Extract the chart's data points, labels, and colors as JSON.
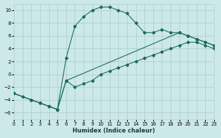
{
  "xlabel": "Humidex (Indice chaleur)",
  "xlim": [
    0,
    23
  ],
  "ylim": [
    -7,
    11
  ],
  "xticks": [
    0,
    1,
    2,
    3,
    4,
    5,
    6,
    7,
    8,
    9,
    10,
    11,
    12,
    13,
    14,
    15,
    16,
    17,
    18,
    19,
    20,
    21,
    22,
    23
  ],
  "yticks": [
    -6,
    -4,
    -2,
    0,
    2,
    4,
    6,
    8,
    10
  ],
  "bg_color": "#cce8e8",
  "grid_color": "#b0d0d0",
  "line_color": "#1a6b5a",
  "curve1_x": [
    0,
    1,
    2,
    3,
    4,
    5,
    6,
    7,
    8,
    9,
    10,
    11,
    12,
    13,
    14,
    15,
    16,
    17,
    18,
    19,
    20,
    21,
    22,
    23
  ],
  "curve1_y": [
    -3.0,
    -3.5,
    -4.0,
    -4.5,
    -5.0,
    -5.5,
    2.5,
    7.5,
    9.0,
    10.0,
    10.5,
    10.5,
    10.0,
    9.5,
    8.0,
    6.5,
    6.5,
    7.0,
    6.5,
    6.5,
    6.0,
    5.5,
    5.0,
    4.5
  ],
  "curve2_x": [
    0,
    2,
    3,
    4,
    5,
    6,
    7,
    8,
    9,
    10,
    11,
    12,
    13,
    14,
    15,
    16,
    17,
    18,
    19,
    20,
    21,
    22,
    23
  ],
  "curve2_y": [
    -3.0,
    -4.0,
    -4.5,
    -5.0,
    -5.5,
    -1.0,
    -2.0,
    -1.5,
    -1.0,
    0.0,
    0.5,
    1.0,
    1.5,
    2.0,
    2.5,
    3.0,
    3.5,
    4.0,
    4.5,
    5.0,
    5.0,
    4.5,
    4.0
  ],
  "curve3_x": [
    0,
    2,
    3,
    4,
    5,
    6,
    19,
    20,
    21,
    22,
    23
  ],
  "curve3_y": [
    -3.0,
    -4.0,
    -4.5,
    -5.0,
    -5.5,
    -1.0,
    6.5,
    6.0,
    5.5,
    5.0,
    4.5
  ]
}
